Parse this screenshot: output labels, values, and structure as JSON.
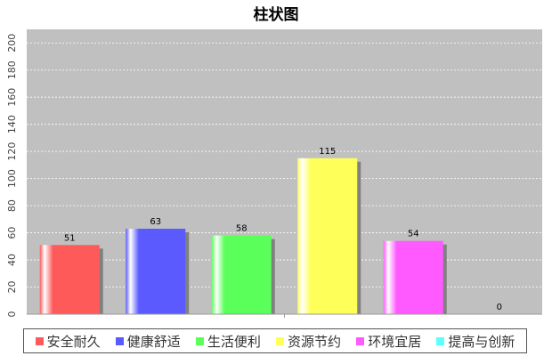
{
  "chart_data": {
    "type": "bar",
    "title": "柱状图",
    "categories": [
      "安全耐久",
      "健康舒适",
      "生活便利",
      "资源节约",
      "环境宜居",
      "提高与创新"
    ],
    "values": [
      51,
      63,
      58,
      115,
      54,
      0
    ],
    "colors": [
      "#ff5a5a",
      "#5a5aff",
      "#5aff5a",
      "#ffff5a",
      "#ff5aff",
      "#5affff"
    ],
    "ylim": [
      0,
      210
    ],
    "yticks": [
      0,
      20,
      40,
      60,
      80,
      100,
      120,
      140,
      160,
      180,
      200
    ],
    "xlabel": "",
    "ylabel": "",
    "grid": true,
    "legend_position": "bottom",
    "plot_background": "#c0c0c0"
  }
}
